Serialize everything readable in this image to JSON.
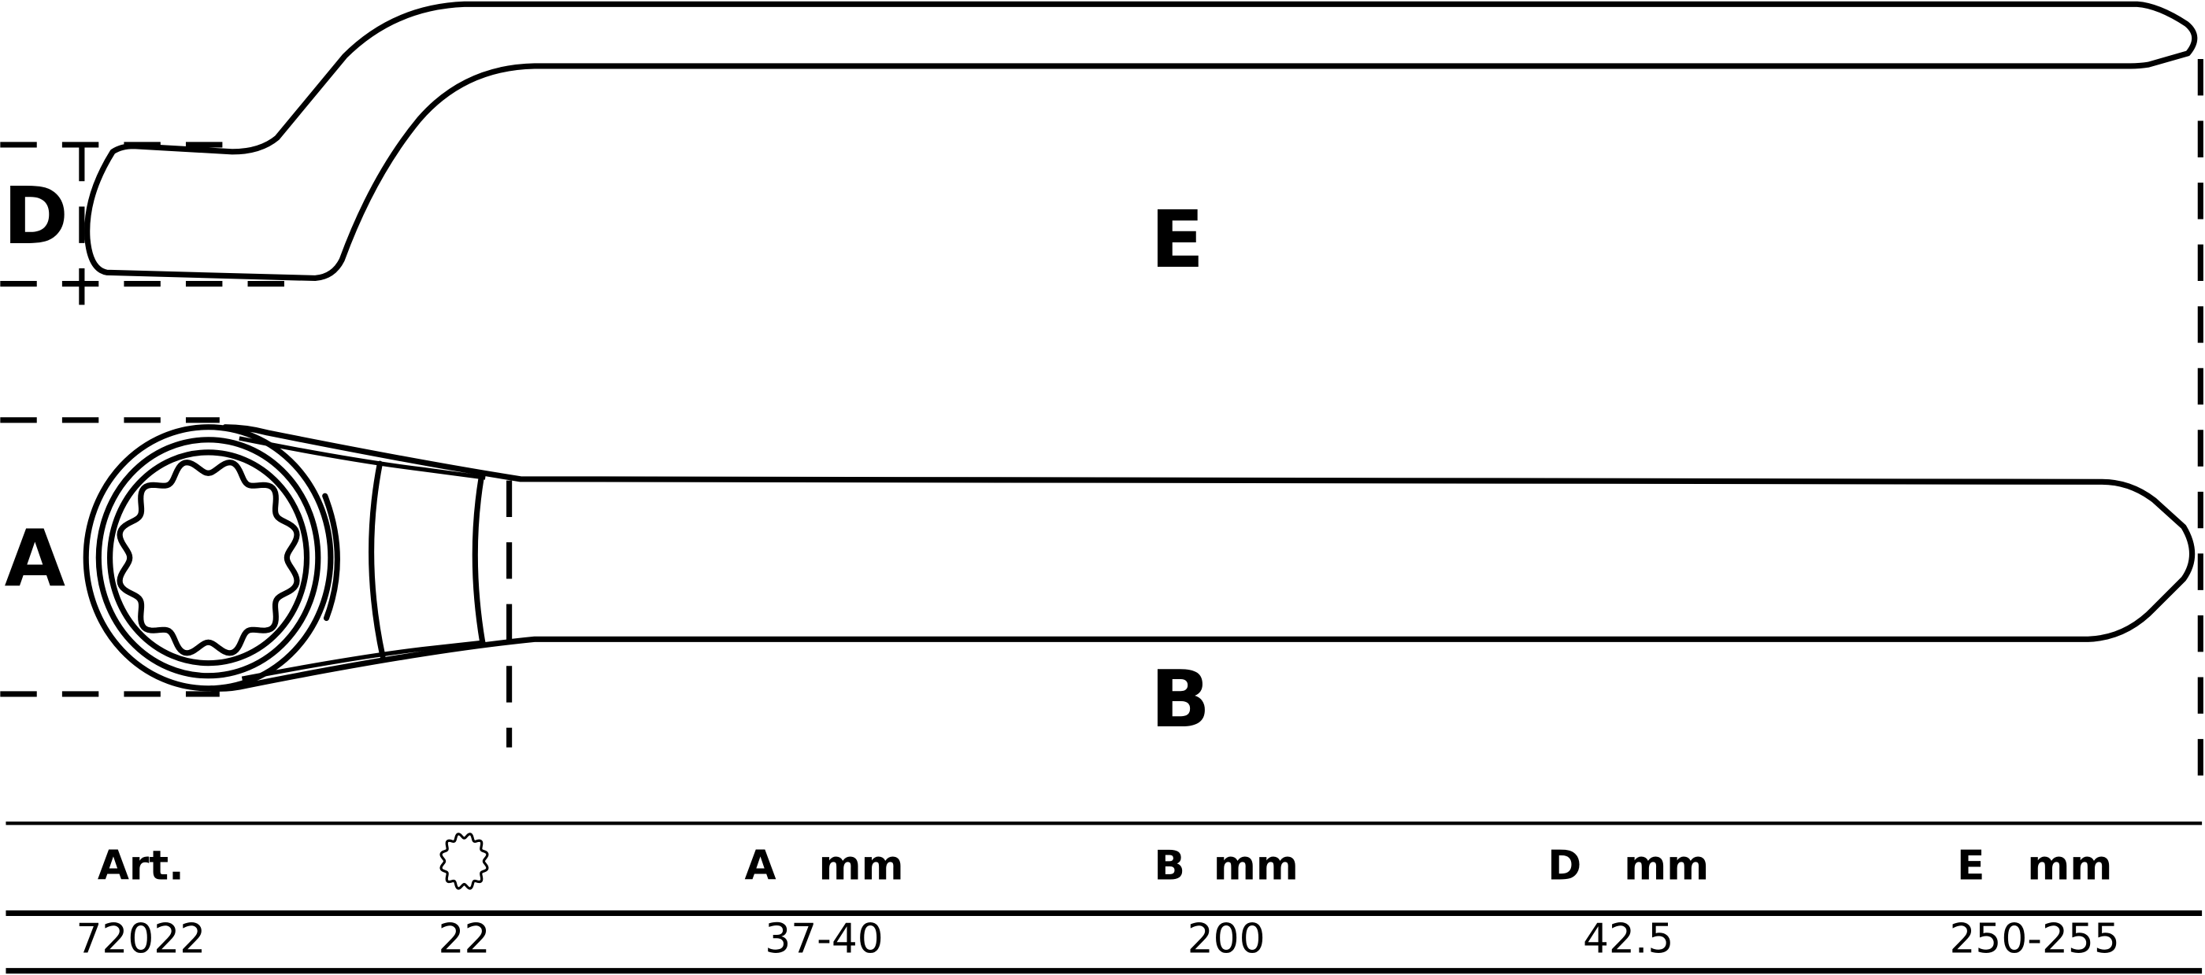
{
  "drawing": {
    "labels": {
      "A": "A",
      "B": "B",
      "D": "D",
      "E": "E"
    }
  },
  "table": {
    "headers": [
      "Art.",
      "",
      "A   mm",
      "B  mm",
      "D   mm",
      "E   mm"
    ],
    "header_icon": "twelve-point-star-icon",
    "rows": [
      [
        "72022",
        "22",
        "37-40",
        "200",
        "42.5",
        "250-255"
      ]
    ]
  },
  "colors": {
    "line": "#000000",
    "background": "#ffffff"
  }
}
